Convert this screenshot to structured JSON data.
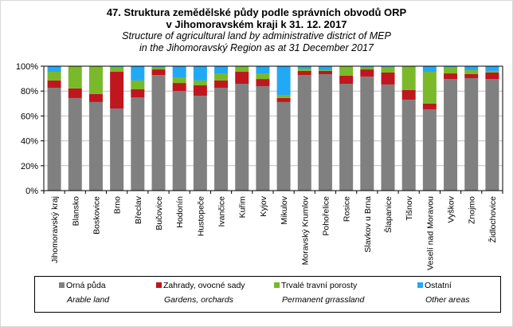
{
  "title_cz_line1": "47. Struktura zemědělské půdy podle správních obvodů ORP",
  "title_cz_line2": "v Jihomoravském kraji k 31. 12. 2017",
  "title_en_line1": "Structure of agricultural land by administrative district of MEP",
  "title_en_line2": "in the Jihomoravský  Region as at 31 December 2017",
  "chart_data": {
    "type": "bar",
    "stacked": true,
    "percent": true,
    "title": "47. Struktura zemědělské půdy podle správních obvodů ORP v Jihomoravském kraji k 31. 12. 2017",
    "subtitle": "Structure of agricultural land by administrative district of MEP in the Jihomoravský Region as at 31 December 2017",
    "xlabel": "",
    "ylabel": "",
    "ylim": [
      0,
      100
    ],
    "yticks": [
      "0%",
      "20%",
      "40%",
      "60%",
      "80%",
      "100%"
    ],
    "grid": true,
    "legend_position": "bottom",
    "categories": [
      "Jihomoravský kraj",
      "Blansko",
      "Boskovice",
      "Brno",
      "Břeclav",
      "Bučovice",
      "Hodonín",
      "Hustopeče",
      "Ivančice",
      "Kuřim",
      "Kyjov",
      "Mikulov",
      "Moravský Krumlov",
      "Pohořelice",
      "Rosice",
      "Slavkov u Brna",
      "Šlapanice",
      "Tišnov",
      "Veselí nad Moravou",
      "Vyškov",
      "Znojmo",
      "Židlochovice"
    ],
    "series": [
      {
        "name": "Orná půda",
        "name_en": "Arable land",
        "color": "#808080",
        "values": [
          82.7,
          74.4,
          71.2,
          66.0,
          75.0,
          92.9,
          80.1,
          76.3,
          82.7,
          85.9,
          84.0,
          71.2,
          92.9,
          93.6,
          85.9,
          91.7,
          85.3,
          73.1,
          65.4,
          89.7,
          90.4,
          89.7
        ]
      },
      {
        "name": "Zahrady, ovocné sady",
        "name_en": "Gardens, orchards",
        "color": "#c0161e",
        "values": [
          5.8,
          7.7,
          6.4,
          29.5,
          6.4,
          4.5,
          6.4,
          8.3,
          5.8,
          9.6,
          5.7,
          3.2,
          3.3,
          2.6,
          6.4,
          5.7,
          9.6,
          7.7,
          4.5,
          4.5,
          3.2,
          5.2
        ]
      },
      {
        "name": "Trvalé travní porosty",
        "name_en": "Permanent grrassland",
        "color": "#7ab929",
        "values": [
          7.0,
          17.9,
          22.4,
          3.9,
          7.1,
          2.0,
          4.5,
          3.9,
          5.7,
          4.5,
          4.5,
          2.5,
          1.9,
          0.6,
          7.7,
          2.0,
          4.5,
          19.2,
          25.6,
          5.2,
          3.2,
          1.3
        ]
      },
      {
        "name": "Ostatní",
        "name_en": "Other areas",
        "color": "#22a9f5",
        "values": [
          4.5,
          0.0,
          0.0,
          0.6,
          11.5,
          0.6,
          9.0,
          11.5,
          5.8,
          0.0,
          5.8,
          23.1,
          1.9,
          3.2,
          0.0,
          0.6,
          0.6,
          0.0,
          4.5,
          0.6,
          3.2,
          3.8
        ]
      }
    ]
  }
}
